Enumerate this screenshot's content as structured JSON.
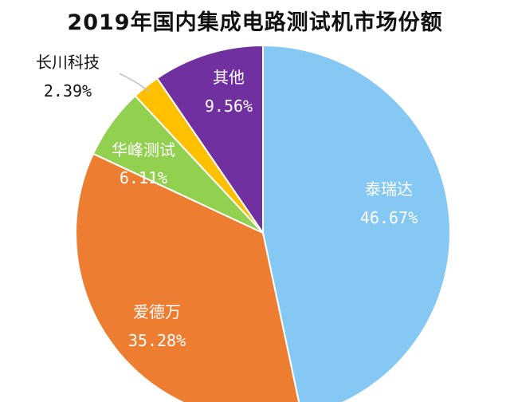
{
  "chart_data": {
    "type": "pie",
    "title": "2019年国内集成电路测试机市场份额",
    "slices": [
      {
        "name": "泰瑞达",
        "value": 46.67,
        "label": "46.67%",
        "color": "#85c8f3"
      },
      {
        "name": "爱德万",
        "value": 35.28,
        "label": "35.28%",
        "color": "#ed7d31"
      },
      {
        "name": "华峰测试",
        "value": 6.11,
        "label": "6.11%",
        "color": "#92d050"
      },
      {
        "name": "长川科技",
        "value": 2.39,
        "label": "2.39%",
        "color": "#ffc000"
      },
      {
        "name": "其他",
        "value": 9.56,
        "label": "9.56%",
        "color": "#7030a0"
      }
    ],
    "start": "12 o'clock",
    "direction": "clockwise",
    "labels": "inside, white; small slice label outside with leader line"
  }
}
